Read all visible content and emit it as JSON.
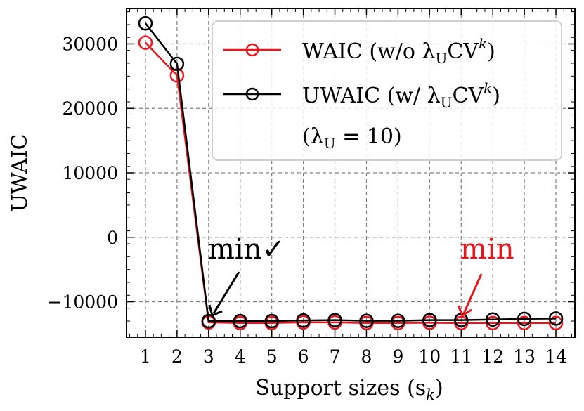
{
  "chart_data": {
    "type": "line",
    "title": "",
    "xlabel": "Support sizes (s",
    "xlabel_sub": "k",
    "xlabel_close": ")",
    "ylabel": "UWAIC",
    "x": [
      1,
      2,
      3,
      4,
      5,
      6,
      7,
      8,
      9,
      10,
      11,
      12,
      13,
      14
    ],
    "xticks": [
      "1",
      "2",
      "3",
      "4",
      "5",
      "6",
      "7",
      "8",
      "9",
      "10",
      "11",
      "12",
      "13",
      "14"
    ],
    "xlim": [
      0.4,
      14.6
    ],
    "yticks": [
      30000,
      20000,
      10000,
      0,
      -10000
    ],
    "ytick_labels": [
      "30000",
      "20000",
      "10000",
      "0",
      "−10000"
    ],
    "ylim": [
      -15500,
      35500
    ],
    "grid": true,
    "legend_position": "top-right",
    "series": [
      {
        "name": "WAIC (w/o λUCV^k)",
        "name_parts": {
          "main": "WAIC (w/o λ",
          "sub": "U",
          "mid": "CV",
          "sup": "k",
          "end": ")"
        },
        "color": "#e8151b",
        "values": [
          30200,
          25100,
          -13200,
          -13300,
          -13300,
          -13200,
          -13200,
          -13300,
          -13300,
          -13250,
          -13300,
          -13300,
          -13300,
          -13300
        ]
      },
      {
        "name": "UWAIC (w/ λUCV^k)",
        "name_parts": {
          "main": "UWAIC (w/ λ",
          "sub": "U",
          "mid": "CV",
          "sup": "k",
          "end": ")"
        },
        "color": "#000000",
        "values": [
          33200,
          26900,
          -13000,
          -13000,
          -13000,
          -12900,
          -12850,
          -12950,
          -12950,
          -12850,
          -12850,
          -12750,
          -12650,
          -12600
        ]
      }
    ],
    "legend_extra": {
      "main": "(λ",
      "sub": "U",
      "end": " = 10)"
    },
    "annotations": [
      {
        "text": "min✓",
        "color": "#000000",
        "target_x": 3,
        "target_y": -12900
      },
      {
        "text": "min",
        "color": "#e8151b",
        "target_x": 11,
        "target_y": -12700
      }
    ]
  }
}
